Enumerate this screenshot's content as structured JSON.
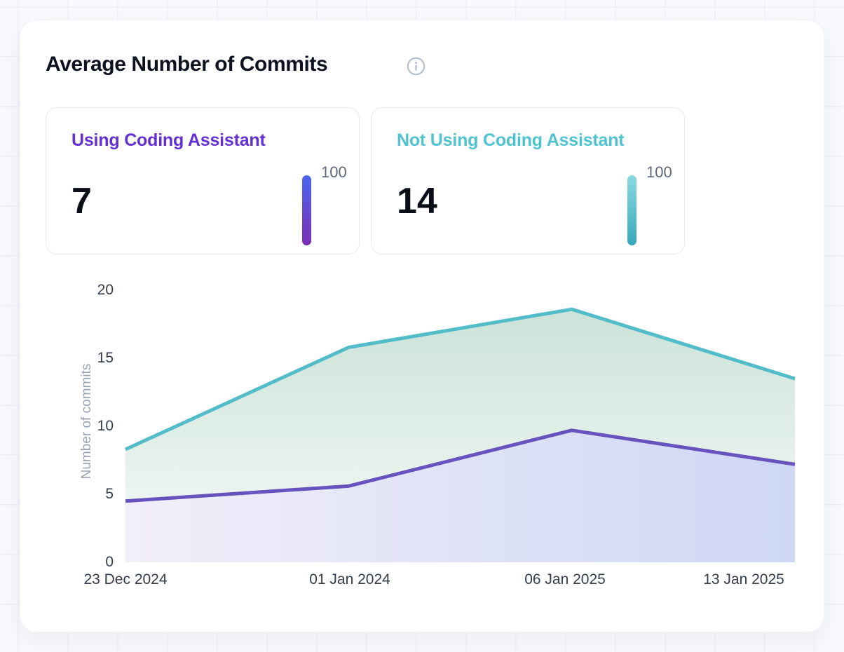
{
  "card": {
    "title": "Average Number of Commits",
    "info_icon": "info-circle-icon",
    "icon_color": "#B6BDCC"
  },
  "stats": [
    {
      "label": "Using Coding Assistant",
      "value": "7",
      "scale_max": "100",
      "accent": "#6230D3",
      "bar_gradient": [
        "#4A66EF",
        "#7B2EB4"
      ]
    },
    {
      "label": "Not Using Coding Assistant",
      "value": "14",
      "scale_max": "100",
      "accent": "#4FC4CE",
      "bar_gradient": [
        "#8AD8E0",
        "#39A8BA"
      ]
    }
  ],
  "chart_data": {
    "type": "area",
    "title": "",
    "xlabel": "",
    "ylabel": "Number of commits",
    "categories": [
      "23 Dec 2024",
      "01 Jan 2024",
      "06 Jan 2025",
      "13 Jan 2025"
    ],
    "series": [
      {
        "name": "Not Using Coding Assistant",
        "color": "#52BCC8",
        "values": [
          8.3,
          15.8,
          18.6,
          13.5
        ],
        "area_gradient": {
          "direction": "vertical",
          "from": "#CBE3D9",
          "to": "#F7FAF8"
        }
      },
      {
        "name": "Using Coding Assistant",
        "color": "#6852BE",
        "values": [
          4.5,
          5.6,
          9.7,
          7.2
        ],
        "area_gradient": {
          "direction": "horizontal",
          "from": "#F2EFFA",
          "to": "#CED7F4"
        }
      }
    ],
    "y_ticks": [
      0,
      5,
      10,
      15,
      20
    ],
    "ylim": [
      0,
      20
    ],
    "grid": false,
    "legend": "none"
  }
}
